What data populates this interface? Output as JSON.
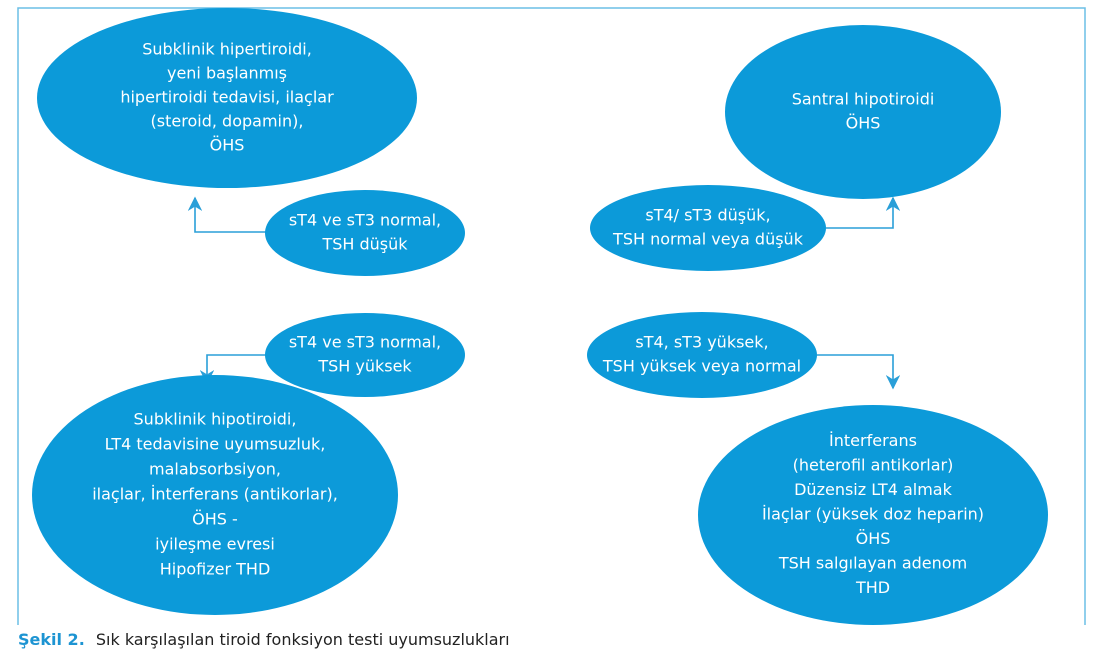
{
  "nodes": [
    {
      "lines": [
        "Subklinik hipertiroidi,",
        "yeni başlanmış",
        "hipertiroidi tedavisi, ilaçlar",
        "(steroid, dopamin),",
        "ÖHS"
      ]
    },
    {
      "lines": [
        "Santral hipotiroidi",
        "ÖHS"
      ]
    },
    {
      "lines": [
        "sT4 ve sT3 normal,",
        "TSH düşük"
      ]
    },
    {
      "lines": [
        "sT4/ sT3 düşük,",
        "TSH normal veya düşük"
      ]
    },
    {
      "lines": [
        "sT4 ve sT3 normal,",
        "TSH yüksek"
      ]
    },
    {
      "lines": [
        "sT4, sT3 yüksek,",
        "TSH yüksek veya normal"
      ]
    },
    {
      "lines": [
        "Subklinik hipotiroidi,",
        "LT4 tedavisine uyumsuzluk,",
        "malabsorbsiyon,",
        "ilaçlar, İnterferans (antikorlar),",
        "ÖHS -",
        "iyileşme evresi",
        "Hipofizer THD"
      ]
    },
    {
      "lines": [
        "İnterferans",
        "(heterofil antikorlar)",
        "Düzensiz LT4 almak",
        "İlaçlar (yüksek doz heparin)",
        "ÖHS",
        "TSH salgılayan adenom",
        "THD"
      ]
    }
  ],
  "caption": {
    "label": "Şekil 2.",
    "text": "Sık karşılaşılan tiroid fonksiyon testi uyumsuzlukları"
  }
}
